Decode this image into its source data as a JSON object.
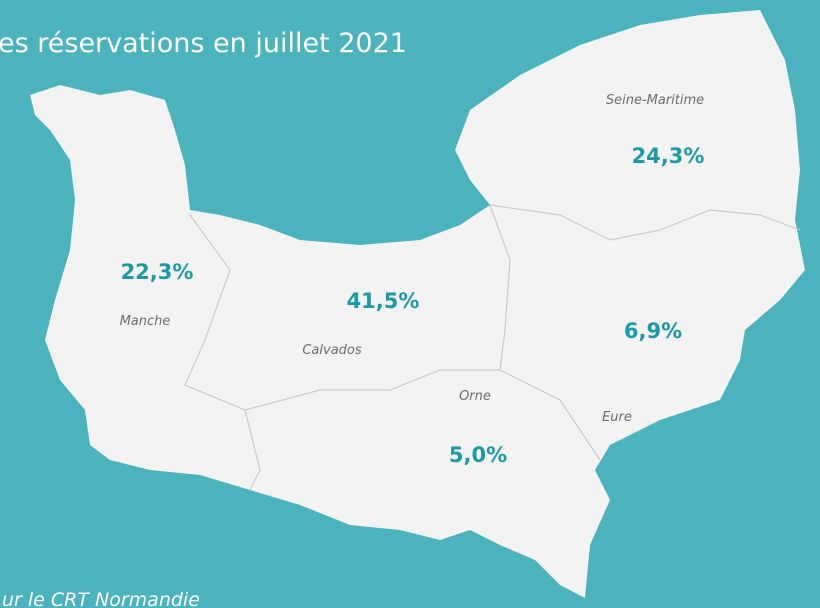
{
  "title": "es réservations en juillet 2021",
  "regions": [
    {
      "name": "Seine-Maritime",
      "value": "24,3%"
    },
    {
      "name": "Manche",
      "value": "22,3%"
    },
    {
      "name": "Calvados",
      "value": "41,5%"
    },
    {
      "name": "Eure",
      "value": "6,9%"
    },
    {
      "name": "Orne",
      "value": "5,0%"
    }
  ],
  "source": "ur le CRT Normandie"
}
